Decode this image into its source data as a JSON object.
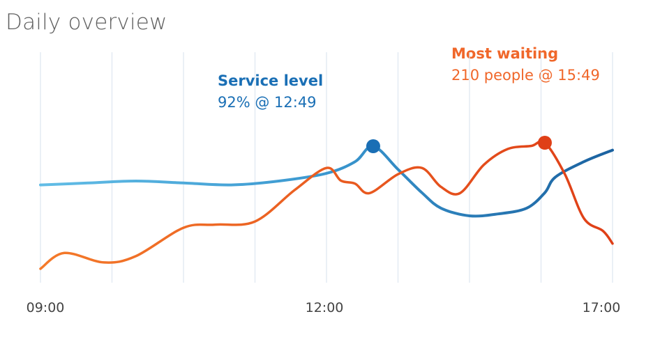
{
  "title": "Daily overview",
  "annotations": {
    "service": {
      "label": "Service level",
      "value": "92% @ 12:49"
    },
    "waiting": {
      "label": "Most waiting",
      "value": "210 people @ 15:49"
    }
  },
  "colors": {
    "service_light": "#62bde6",
    "service_mid": "#3a97cf",
    "service_dark": "#1b62a0",
    "service_marker": "#1a6fb5",
    "waiting_light": "#f47a2a",
    "waiting_dark": "#df3f17",
    "waiting_marker": "#df3f17",
    "grid": "#dde7f0"
  },
  "chart_data": {
    "type": "line",
    "title": "Daily overview",
    "xlabel": "",
    "ylabel": "",
    "x_ticks": [
      "09:00",
      "12:00",
      "17:00"
    ],
    "grid": "vertical",
    "series": [
      {
        "name": "Service level",
        "unit": "%",
        "x": [
          "09:00",
          "09:30",
          "10:00",
          "10:30",
          "11:00",
          "11:30",
          "12:00",
          "12:30",
          "12:49",
          "13:15",
          "13:40",
          "14:00",
          "14:30",
          "15:00",
          "15:30",
          "15:49",
          "16:00",
          "16:30",
          "17:00"
        ],
        "y": [
          82,
          82.5,
          83,
          82.5,
          82,
          83,
          85,
          88,
          92,
          86,
          80,
          76,
          74,
          74.5,
          76,
          80,
          84,
          88,
          91
        ]
      },
      {
        "name": "Most waiting",
        "unit": "people",
        "x": [
          "09:00",
          "09:15",
          "09:40",
          "10:00",
          "10:30",
          "10:50",
          "11:15",
          "11:40",
          "12:00",
          "12:15",
          "12:30",
          "12:45",
          "13:15",
          "13:40",
          "14:00",
          "14:20",
          "14:45",
          "15:10",
          "15:35",
          "15:49",
          "16:10",
          "16:30",
          "16:50",
          "17:00"
        ],
        "y": [
          10,
          35,
          20,
          30,
          75,
          80,
          85,
          135,
          170,
          150,
          145,
          130,
          160,
          170,
          140,
          130,
          175,
          200,
          205,
          210,
          160,
          90,
          70,
          50
        ]
      }
    ],
    "peaks": [
      {
        "series": "Service level",
        "x": "12:49",
        "y": 92
      },
      {
        "series": "Most waiting",
        "x": "15:49",
        "y": 210
      }
    ]
  }
}
